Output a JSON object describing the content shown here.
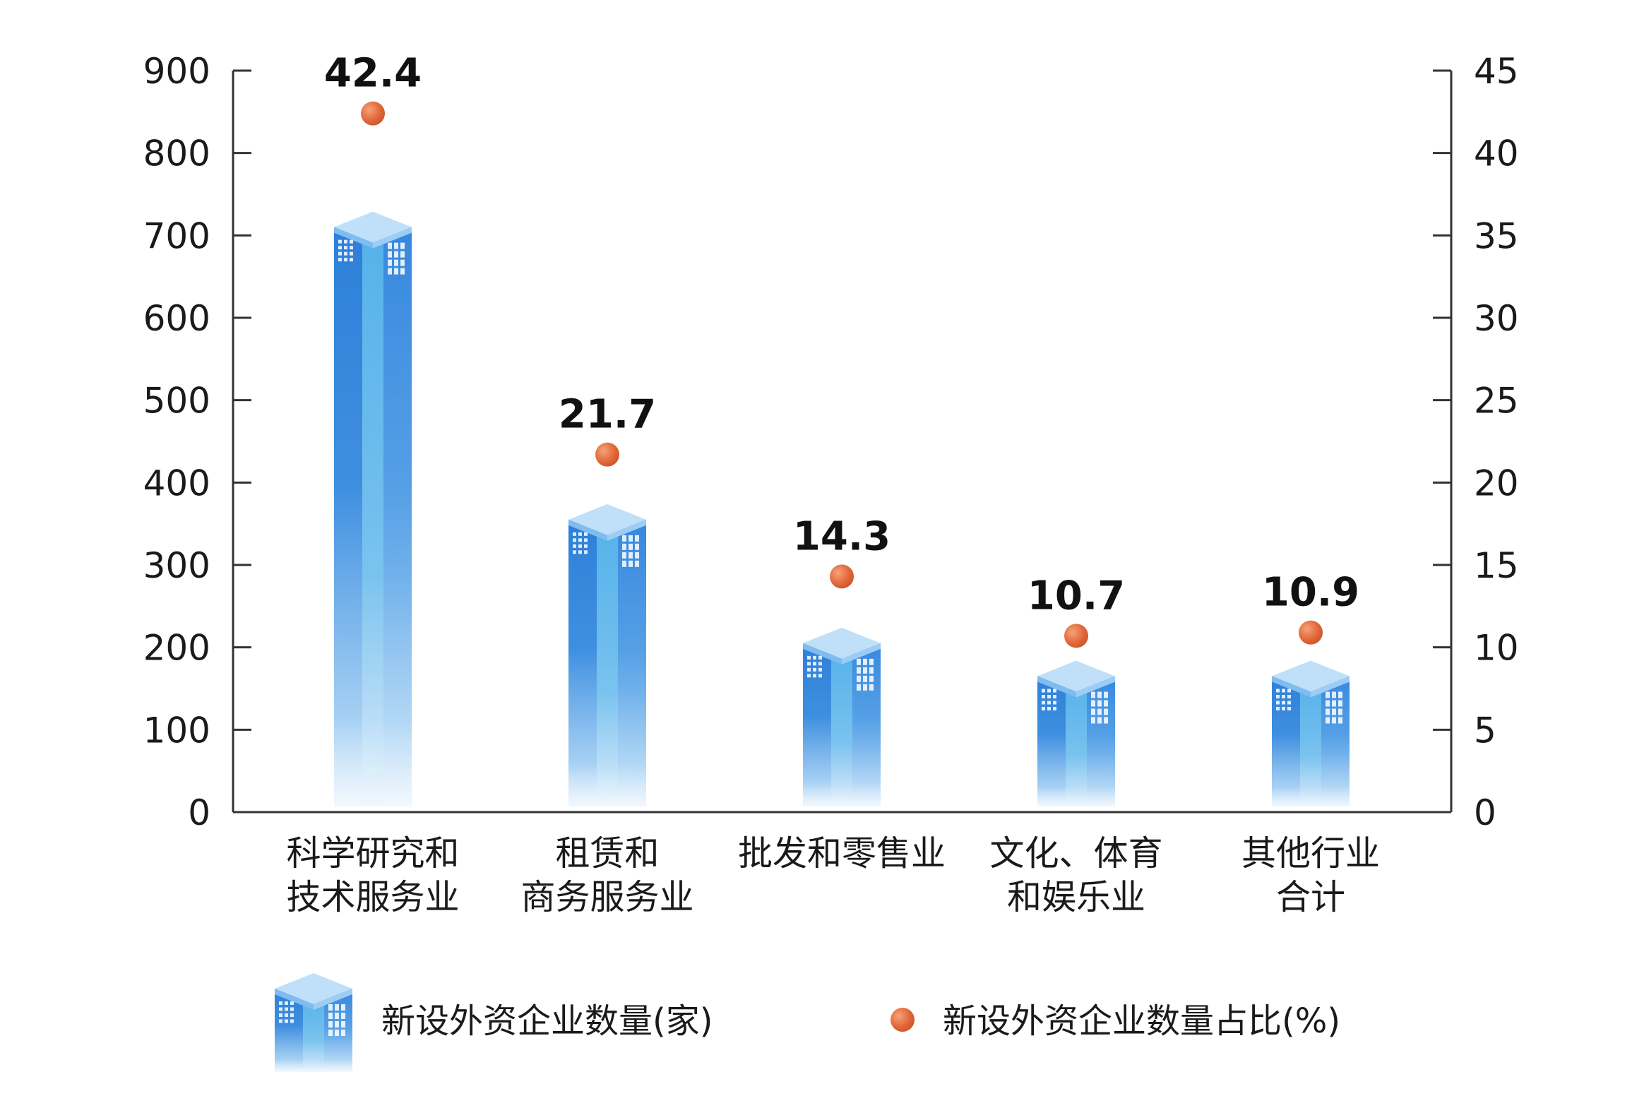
{
  "chart_data": {
    "type": "bar",
    "categories": [
      [
        "科学研究和",
        "技术服务业"
      ],
      [
        "租赁和",
        "商务服务业"
      ],
      [
        "批发和零售业"
      ],
      [
        "文化、体育",
        "和娱乐业"
      ],
      [
        "其他行业",
        "合计"
      ]
    ],
    "series": [
      {
        "name": "新设外资企业数量(家)",
        "type": "bar",
        "axis": "left",
        "values": [
          710,
          355,
          205,
          165,
          165
        ]
      },
      {
        "name": "新设外资企业数量占比(%)",
        "type": "scatter",
        "axis": "right",
        "values": [
          42.4,
          21.7,
          14.3,
          10.7,
          10.9
        ]
      }
    ],
    "y_left": {
      "ticks": [
        "0",
        "100",
        "200",
        "300",
        "400",
        "500",
        "600",
        "700",
        "800",
        "900"
      ],
      "min": 0,
      "max": 900
    },
    "y_right": {
      "ticks": [
        "0",
        "5",
        "10",
        "15",
        "20",
        "25",
        "30",
        "35",
        "40",
        "45"
      ],
      "min": 0,
      "max": 45
    },
    "data_labels": [
      "42.4",
      "21.7",
      "14.3",
      "10.7",
      "10.9"
    ],
    "legend": {
      "placement": "bottom",
      "items": [
        "新设外资企业数量(家)",
        "新设外资企业数量占比(%)"
      ]
    },
    "grid": false,
    "colors": {
      "bar_dark": "#2f7fd8",
      "bar_mid": "#4da0e8",
      "bar_light": "#cfe6fa",
      "bar_top": "#bfe0f8",
      "dot": "#e2683a",
      "axis": "#333333"
    }
  }
}
